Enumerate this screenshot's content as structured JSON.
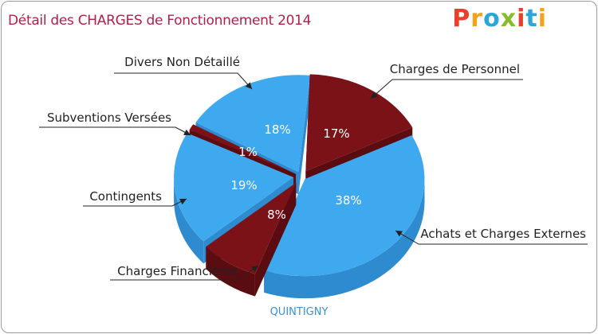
{
  "title": "Détail des CHARGES de Fonctionnement 2014",
  "logo": {
    "text": "Proxiti",
    "letter_colors": [
      "#e8402a",
      "#f2a31b",
      "#2aa6d9",
      "#89bc2a",
      "#e8402a",
      "#2aa6d9",
      "#f2a31b"
    ]
  },
  "commune": "QUINTIGNY",
  "colors": {
    "title": "#b01f4a",
    "blue_top": "#3fa9ef",
    "blue_side": "#2f8bcf",
    "red_top": "#7b1218",
    "red_side": "#5a0c10",
    "commune": "#3c8fd6"
  },
  "chart_data": {
    "type": "pie",
    "title": "Détail des CHARGES de Fonctionnement 2014",
    "slices": [
      {
        "label": "Charges de Personnel",
        "percent": 17,
        "pct_text": "17%",
        "color": "red"
      },
      {
        "label": "Achats et Charges Externes",
        "percent": 38,
        "pct_text": "38%",
        "color": "blue"
      },
      {
        "label": "Charges Financières",
        "percent": 8,
        "pct_text": "8%",
        "color": "red"
      },
      {
        "label": "Contingents",
        "percent": 19,
        "pct_text": "19%",
        "color": "blue"
      },
      {
        "label": "Subventions Versées",
        "percent": 1,
        "pct_text": "1%",
        "color": "red"
      },
      {
        "label": "Divers Non Détaillé",
        "percent": 18,
        "pct_text": "18%",
        "color": "blue"
      }
    ]
  }
}
